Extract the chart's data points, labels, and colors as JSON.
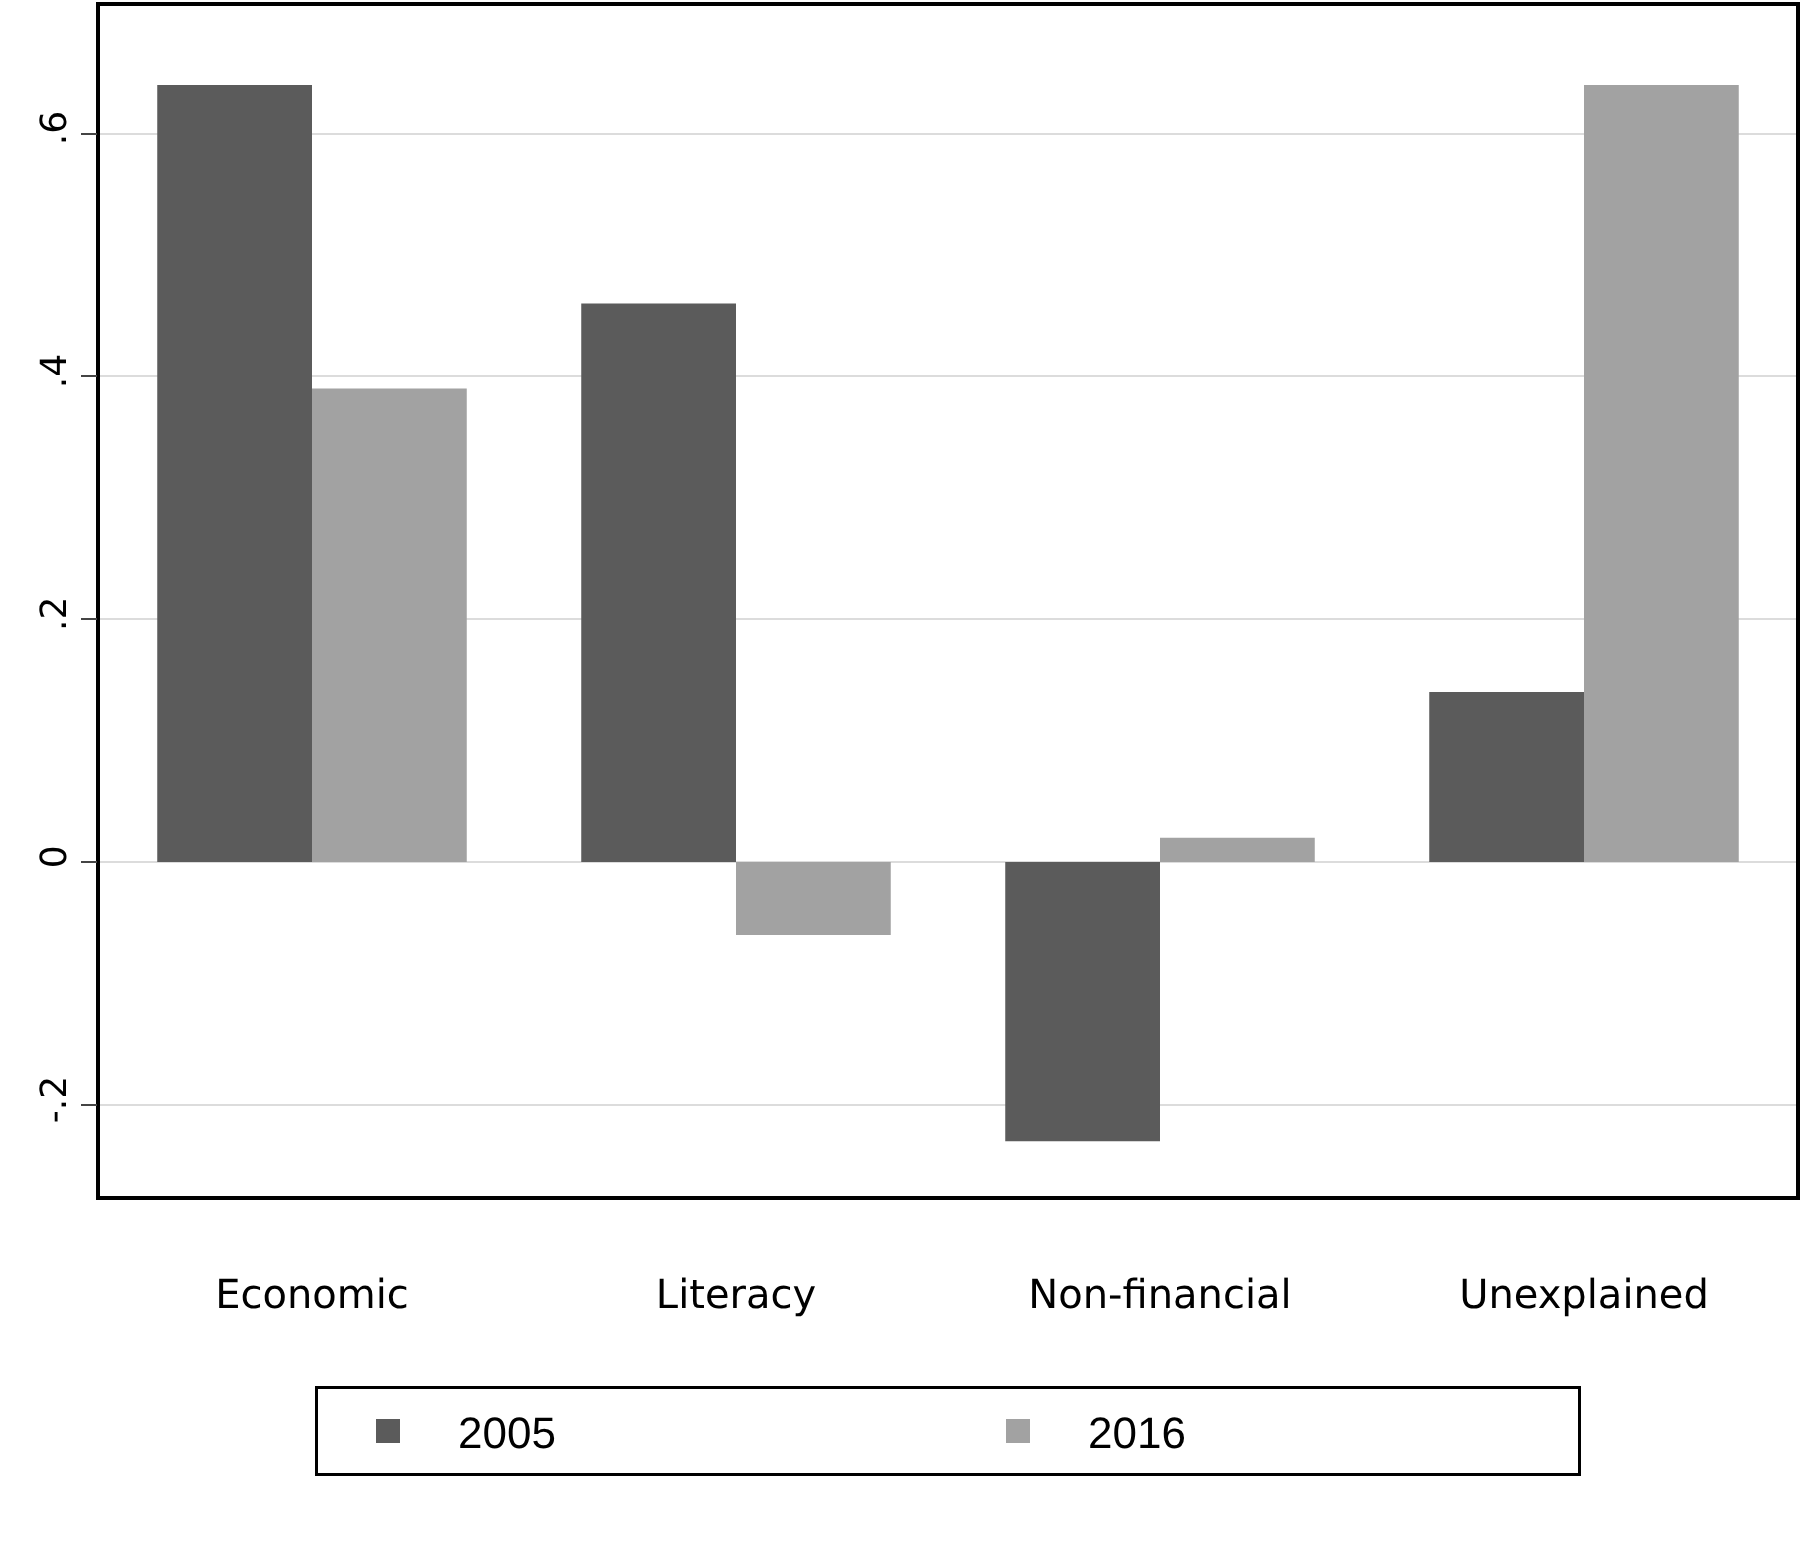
{
  "chart_data": {
    "type": "bar",
    "categories": [
      "Economic",
      "Literacy",
      "Non-financial",
      "Unexplained"
    ],
    "series": [
      {
        "name": "2005",
        "color": "#5b5b5b",
        "values": [
          0.64,
          0.46,
          -0.23,
          0.14
        ]
      },
      {
        "name": "2016",
        "color": "#a2a2a2",
        "values": [
          0.39,
          -0.06,
          0.02,
          0.64
        ]
      }
    ],
    "ylim": [
      -0.275,
      0.705
    ],
    "yticks": [
      {
        "value": -0.2,
        "label": "-.2"
      },
      {
        "value": 0,
        "label": "0"
      },
      {
        "value": 0.2,
        "label": ".2"
      },
      {
        "value": 0.4,
        "label": ".4"
      },
      {
        "value": 0.6,
        "label": ".6"
      }
    ],
    "grid": "y",
    "legend": "bottom"
  }
}
